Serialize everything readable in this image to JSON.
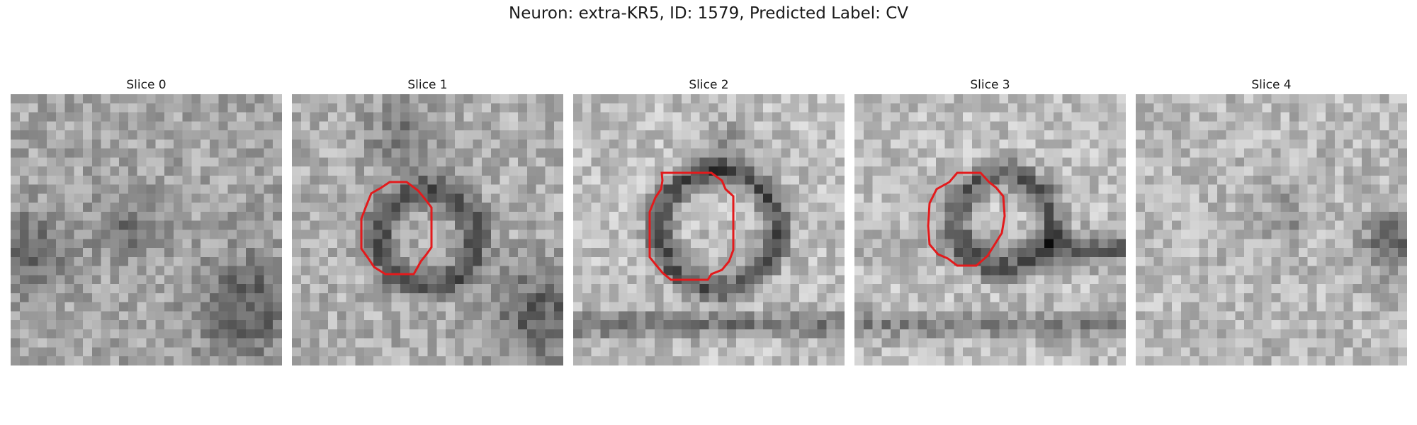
{
  "figure": {
    "title": "Neuron: extra-KR5, ID: 1579, Predicted Label: CV"
  },
  "panels": [
    {
      "label": "Slice 0",
      "has_contour": false
    },
    {
      "label": "Slice 1",
      "has_contour": true
    },
    {
      "label": "Slice 2",
      "has_contour": true
    },
    {
      "label": "Slice 3",
      "has_contour": true
    },
    {
      "label": "Slice 4",
      "has_contour": false
    }
  ],
  "colors": {
    "contour": "#e31a1c",
    "background": "#ffffff"
  }
}
